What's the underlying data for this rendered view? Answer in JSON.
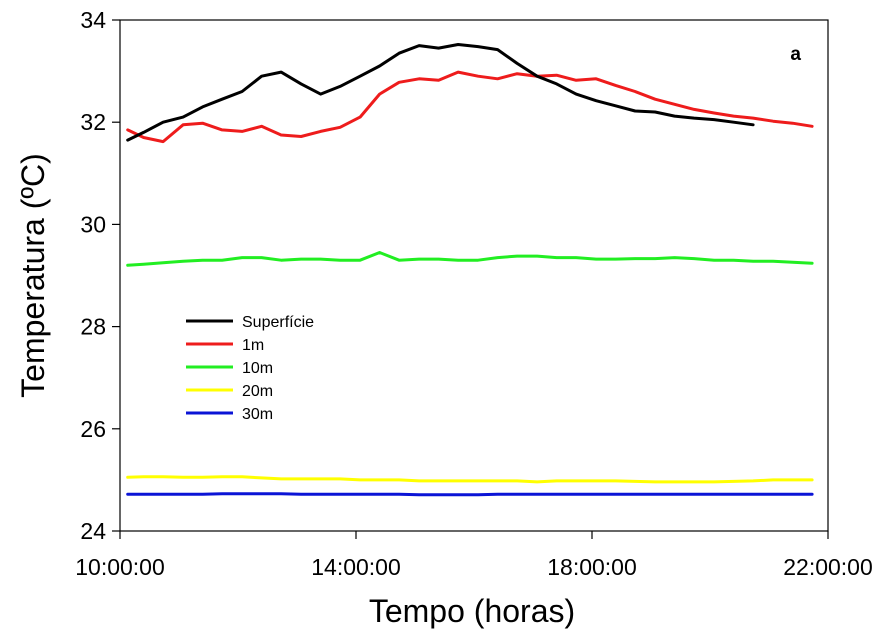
{
  "chart_data": {
    "type": "line",
    "panel_label": "a",
    "xlabel": "Tempo (horas)",
    "ylabel": "Temperatura (ºC)",
    "xlim": [
      10,
      22
    ],
    "ylim": [
      24,
      34
    ],
    "x_tick_values": [
      10,
      14,
      18,
      22
    ],
    "x_tick_labels": [
      "10:00:00",
      "14:00:00",
      "18:00:00",
      "22:00:00"
    ],
    "y_ticks": [
      24,
      26,
      28,
      30,
      32,
      34
    ],
    "grid": false,
    "legend_position": "center-left",
    "series": [
      {
        "name": "Superfície",
        "color": "#000000",
        "x": [
          10.13,
          10.4,
          10.73,
          11.07,
          11.4,
          11.73,
          12.07,
          12.4,
          12.73,
          13.07,
          13.4,
          13.73,
          14.07,
          14.4,
          14.73,
          15.07,
          15.4,
          15.73,
          16.07,
          16.4,
          16.73,
          17.07,
          17.4,
          17.73,
          18.07,
          18.4,
          18.73,
          19.07,
          19.4,
          19.73,
          20.07,
          20.4,
          20.73
        ],
        "y": [
          31.65,
          31.8,
          32.0,
          32.1,
          32.3,
          32.45,
          32.6,
          32.9,
          32.98,
          32.75,
          32.55,
          32.7,
          32.9,
          33.1,
          33.35,
          33.5,
          33.45,
          33.52,
          33.48,
          33.42,
          33.15,
          32.9,
          32.75,
          32.55,
          32.42,
          32.32,
          32.22,
          32.2,
          32.12,
          32.08,
          32.05,
          32.0,
          31.95
        ]
      },
      {
        "name": "1m",
        "color": "#ee1c1c",
        "x": [
          10.13,
          10.4,
          10.73,
          11.07,
          11.4,
          11.73,
          12.07,
          12.4,
          12.73,
          13.07,
          13.4,
          13.73,
          14.07,
          14.4,
          14.73,
          15.07,
          15.4,
          15.73,
          16.07,
          16.4,
          16.73,
          17.07,
          17.4,
          17.73,
          18.07,
          18.4,
          18.73,
          19.07,
          19.4,
          19.73,
          20.07,
          20.4,
          20.73,
          21.07,
          21.4,
          21.73
        ],
        "y": [
          31.85,
          31.7,
          31.62,
          31.95,
          31.98,
          31.85,
          31.82,
          31.92,
          31.75,
          31.72,
          31.82,
          31.9,
          32.1,
          32.55,
          32.78,
          32.85,
          32.82,
          32.98,
          32.9,
          32.85,
          32.95,
          32.9,
          32.92,
          32.82,
          32.85,
          32.72,
          32.6,
          32.45,
          32.35,
          32.25,
          32.18,
          32.12,
          32.08,
          32.02,
          31.98,
          31.92
        ]
      },
      {
        "name": "10m",
        "color": "#22ee22",
        "x": [
          10.13,
          10.4,
          10.73,
          11.07,
          11.4,
          11.73,
          12.07,
          12.4,
          12.73,
          13.07,
          13.4,
          13.73,
          14.07,
          14.4,
          14.73,
          15.07,
          15.4,
          15.73,
          16.07,
          16.4,
          16.73,
          17.07,
          17.4,
          17.73,
          18.07,
          18.4,
          18.73,
          19.07,
          19.4,
          19.73,
          20.07,
          20.4,
          20.73,
          21.07,
          21.4,
          21.73
        ],
        "y": [
          29.2,
          29.22,
          29.25,
          29.28,
          29.3,
          29.3,
          29.35,
          29.35,
          29.3,
          29.32,
          29.32,
          29.3,
          29.3,
          29.45,
          29.3,
          29.32,
          29.32,
          29.3,
          29.3,
          29.35,
          29.38,
          29.38,
          29.35,
          29.35,
          29.32,
          29.32,
          29.33,
          29.33,
          29.35,
          29.33,
          29.3,
          29.3,
          29.28,
          29.28,
          29.26,
          29.24
        ]
      },
      {
        "name": "20m",
        "color": "#ffff00",
        "x": [
          10.13,
          10.4,
          10.73,
          11.07,
          11.4,
          11.73,
          12.07,
          12.4,
          12.73,
          13.07,
          13.4,
          13.73,
          14.07,
          14.4,
          14.73,
          15.07,
          15.4,
          15.73,
          16.07,
          16.4,
          16.73,
          17.07,
          17.4,
          17.73,
          18.07,
          18.4,
          18.73,
          19.07,
          19.4,
          19.73,
          20.07,
          20.4,
          20.73,
          21.07,
          21.4,
          21.73
        ],
        "y": [
          25.05,
          25.06,
          25.06,
          25.05,
          25.05,
          25.06,
          25.06,
          25.04,
          25.02,
          25.02,
          25.02,
          25.02,
          25.0,
          25.0,
          25.0,
          24.98,
          24.98,
          24.98,
          24.98,
          24.98,
          24.98,
          24.96,
          24.98,
          24.98,
          24.98,
          24.98,
          24.97,
          24.96,
          24.96,
          24.96,
          24.96,
          24.97,
          24.98,
          25.0,
          25.0,
          25.0
        ]
      },
      {
        "name": "30m",
        "color": "#0b14d6",
        "x": [
          10.13,
          10.4,
          10.73,
          11.07,
          11.4,
          11.73,
          12.07,
          12.4,
          12.73,
          13.07,
          13.4,
          13.73,
          14.07,
          14.4,
          14.73,
          15.07,
          15.4,
          15.73,
          16.07,
          16.4,
          16.73,
          17.07,
          17.4,
          17.73,
          18.07,
          18.4,
          18.73,
          19.07,
          19.4,
          19.73,
          20.07,
          20.4,
          20.73,
          21.07,
          21.4,
          21.73
        ],
        "y": [
          24.72,
          24.72,
          24.72,
          24.72,
          24.72,
          24.73,
          24.73,
          24.73,
          24.73,
          24.72,
          24.72,
          24.72,
          24.72,
          24.72,
          24.72,
          24.71,
          24.71,
          24.71,
          24.71,
          24.72,
          24.72,
          24.72,
          24.72,
          24.72,
          24.72,
          24.72,
          24.72,
          24.72,
          24.72,
          24.72,
          24.72,
          24.72,
          24.72,
          24.72,
          24.72,
          24.72
        ]
      }
    ]
  }
}
